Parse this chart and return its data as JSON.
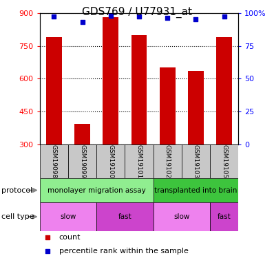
{
  "title": "GDS769 / U77931_at",
  "samples": [
    "GSM19098",
    "GSM19099",
    "GSM19100",
    "GSM19101",
    "GSM19102",
    "GSM19103",
    "GSM19105"
  ],
  "bar_values": [
    790,
    395,
    880,
    800,
    650,
    635,
    790
  ],
  "percentile_values": [
    97,
    93,
    98,
    97,
    96,
    95,
    97
  ],
  "bar_color": "#cc0000",
  "percentile_color": "#0000cc",
  "y_min": 300,
  "y_max": 900,
  "y_ticks": [
    300,
    450,
    600,
    750,
    900
  ],
  "y2_ticks": [
    0,
    25,
    50,
    75,
    100
  ],
  "protocol_groups": [
    {
      "label": "monolayer migration assay",
      "start": 0,
      "end": 4,
      "color": "#90ee90"
    },
    {
      "label": "transplanted into brain",
      "start": 4,
      "end": 7,
      "color": "#3dc43d"
    }
  ],
  "cell_type_groups": [
    {
      "label": "slow",
      "start": 0,
      "end": 2,
      "color": "#ee82ee"
    },
    {
      "label": "fast",
      "start": 2,
      "end": 4,
      "color": "#cc44cc"
    },
    {
      "label": "slow",
      "start": 4,
      "end": 6,
      "color": "#ee82ee"
    },
    {
      "label": "fast",
      "start": 6,
      "end": 7,
      "color": "#cc44cc"
    }
  ],
  "bar_width": 0.55,
  "title_fontsize": 11,
  "tick_fontsize": 8,
  "annotation_fontsize": 7.5,
  "legend_fontsize": 8
}
